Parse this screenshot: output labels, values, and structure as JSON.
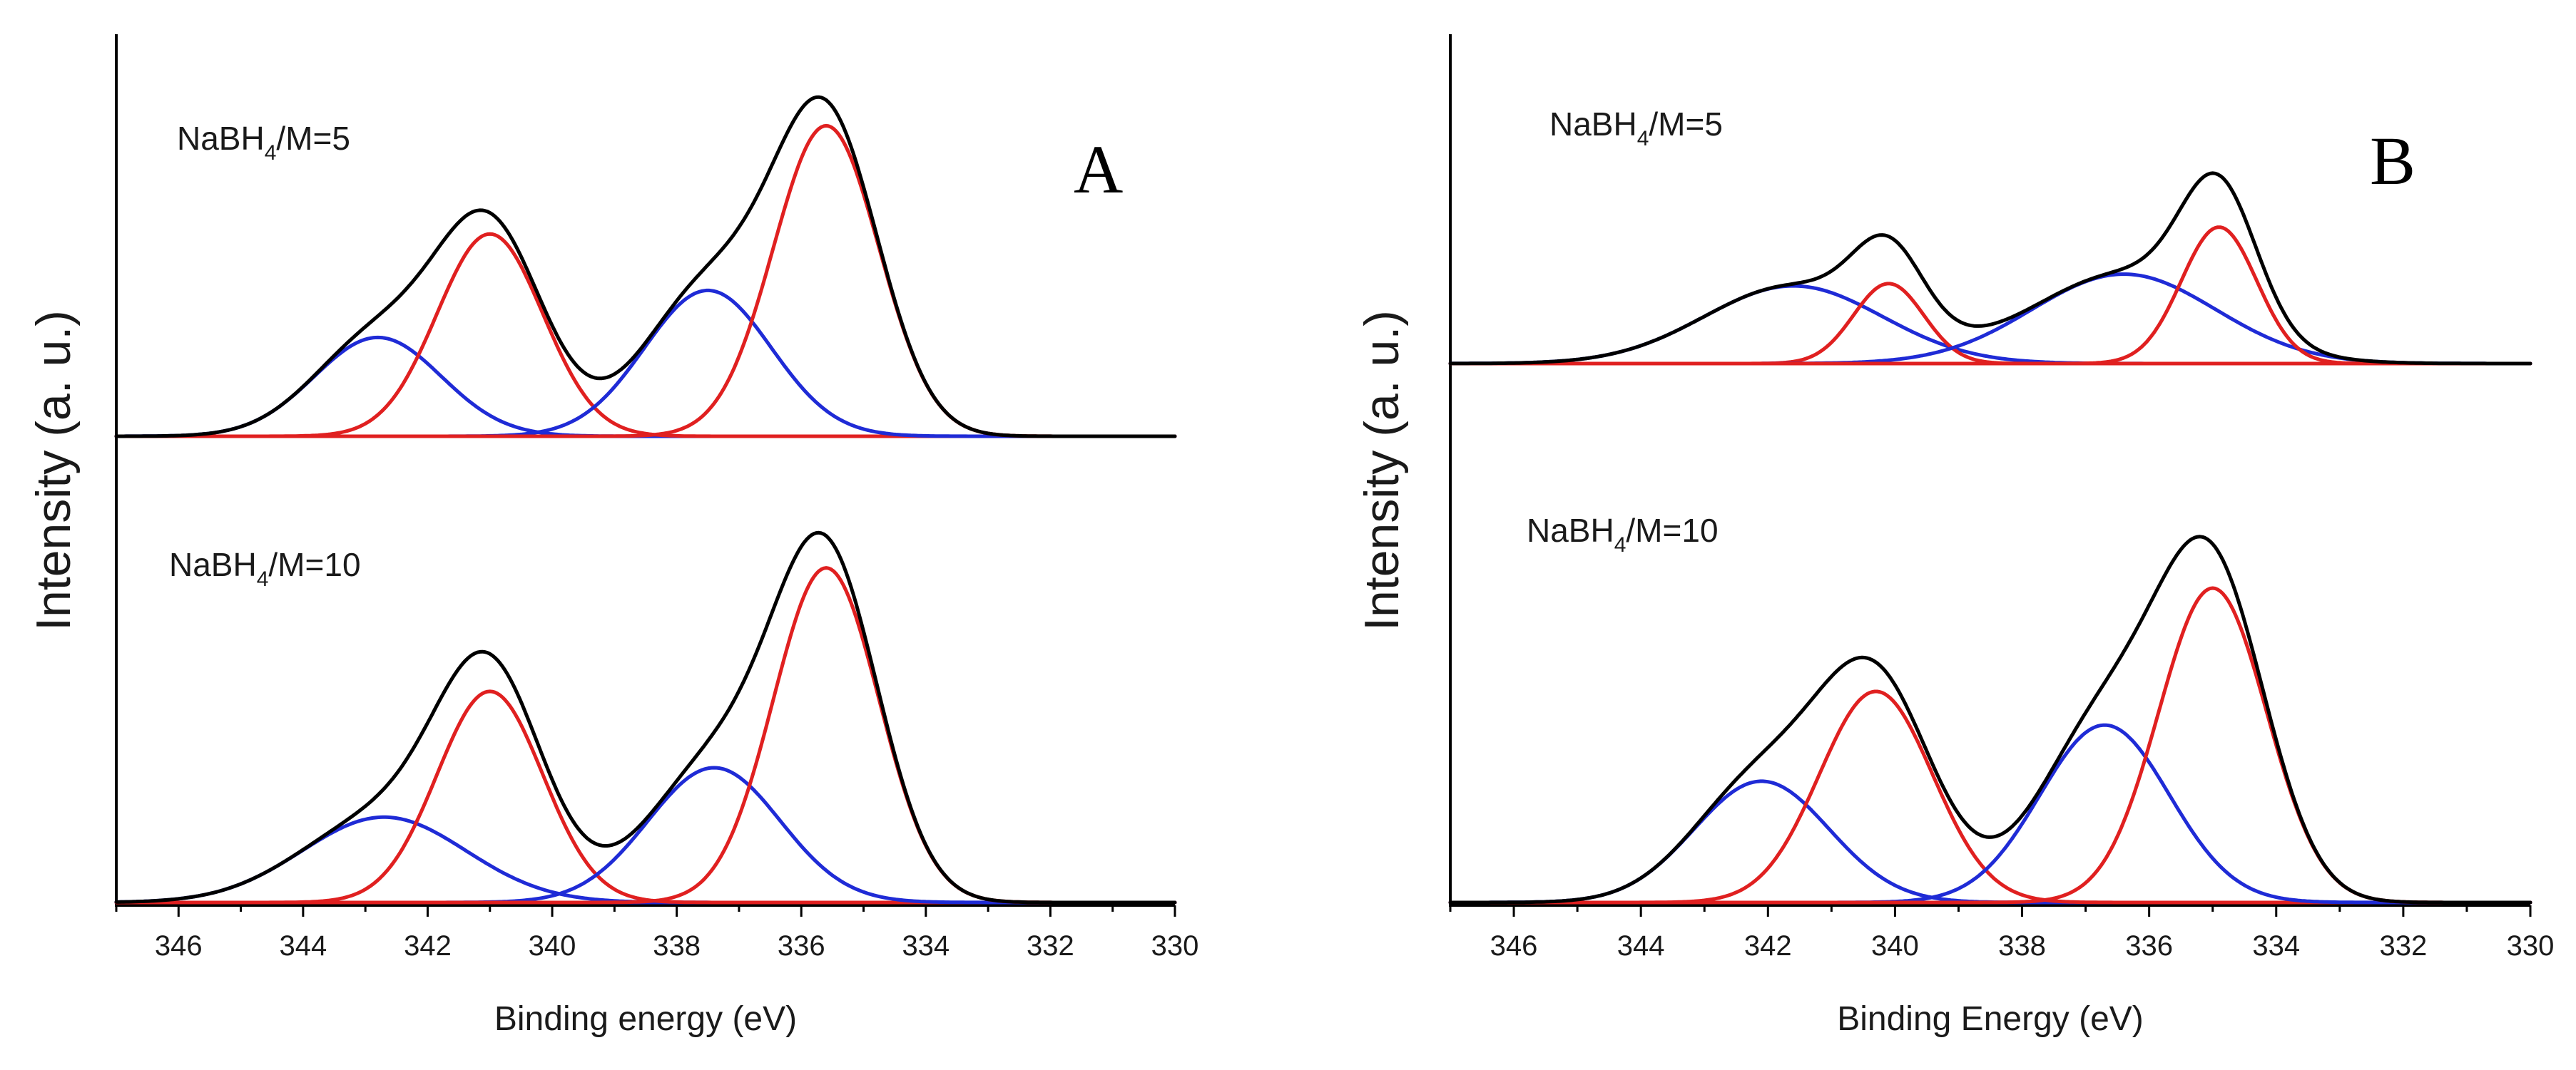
{
  "chart_data": [
    {
      "type": "line",
      "panel_label": "A",
      "xlabel": "Binding energy (eV)",
      "ylabel": "Intensity (a. u.)",
      "xlim": [
        347,
        330
      ],
      "x_ticks": [
        346,
        344,
        342,
        340,
        338,
        336,
        334,
        332,
        330
      ],
      "colors": {
        "envelope": "#000000",
        "component_red": "#e02020",
        "component_blue": "#1f2bd6"
      },
      "spectra": [
        {
          "label_prefix": "NaBH",
          "label_sub": "4",
          "label_suffix": "/M=5",
          "baseline": 0,
          "components": [
            {
              "name": "blue-1",
              "color": "blue",
              "center": 342.8,
              "height": 0.42,
              "fwhm": 2.4
            },
            {
              "name": "red-1",
              "color": "red",
              "center": 341.0,
              "height": 0.86,
              "fwhm": 2.0
            },
            {
              "name": "blue-2",
              "color": "blue",
              "center": 337.5,
              "height": 0.62,
              "fwhm": 2.4
            },
            {
              "name": "red-2",
              "color": "red",
              "center": 335.6,
              "height": 1.32,
              "fwhm": 2.0
            }
          ]
        },
        {
          "label_prefix": "NaBH",
          "label_sub": "4",
          "label_suffix": "/M=10",
          "baseline": 0,
          "components": [
            {
              "name": "blue-1",
              "color": "blue",
              "center": 342.7,
              "height": 0.38,
              "fwhm": 3.1
            },
            {
              "name": "red-1",
              "color": "red",
              "center": 341.0,
              "height": 0.94,
              "fwhm": 2.0
            },
            {
              "name": "blue-2",
              "color": "blue",
              "center": 337.4,
              "height": 0.6,
              "fwhm": 2.5
            },
            {
              "name": "red-2",
              "color": "red",
              "center": 335.6,
              "height": 1.49,
              "fwhm": 2.0
            }
          ]
        }
      ]
    },
    {
      "type": "line",
      "panel_label": "B",
      "xlabel": "Binding Energy (eV)",
      "ylabel": "Intensity (a. u.)",
      "xlim": [
        347,
        330
      ],
      "x_ticks": [
        346,
        344,
        342,
        340,
        338,
        336,
        334,
        332,
        330
      ],
      "colors": {
        "envelope": "#000000",
        "component_red": "#e02020",
        "component_blue": "#1f2bd6"
      },
      "spectra": [
        {
          "label_prefix": "NaBH",
          "label_sub": "4",
          "label_suffix": "/M=5",
          "baseline": 0,
          "components": [
            {
              "name": "blue-1",
              "color": "blue",
              "center": 341.6,
              "height": 0.33,
              "fwhm": 3.3
            },
            {
              "name": "red-1",
              "color": "red",
              "center": 340.1,
              "height": 0.34,
              "fwhm": 1.3
            },
            {
              "name": "blue-2",
              "color": "blue",
              "center": 336.4,
              "height": 0.38,
              "fwhm": 3.4
            },
            {
              "name": "red-2",
              "color": "red",
              "center": 334.9,
              "height": 0.58,
              "fwhm": 1.4
            }
          ]
        },
        {
          "label_prefix": "NaBH",
          "label_sub": "4",
          "label_suffix": "/M=10",
          "baseline": 0,
          "components": [
            {
              "name": "blue-1",
              "color": "blue",
              "center": 342.1,
              "height": 0.54,
              "fwhm": 2.5
            },
            {
              "name": "red-1",
              "color": "red",
              "center": 340.3,
              "height": 0.94,
              "fwhm": 2.1
            },
            {
              "name": "blue-2",
              "color": "blue",
              "center": 336.7,
              "height": 0.79,
              "fwhm": 2.4
            },
            {
              "name": "red-2",
              "color": "red",
              "center": 335.0,
              "height": 1.4,
              "fwhm": 2.0
            }
          ]
        }
      ]
    }
  ]
}
